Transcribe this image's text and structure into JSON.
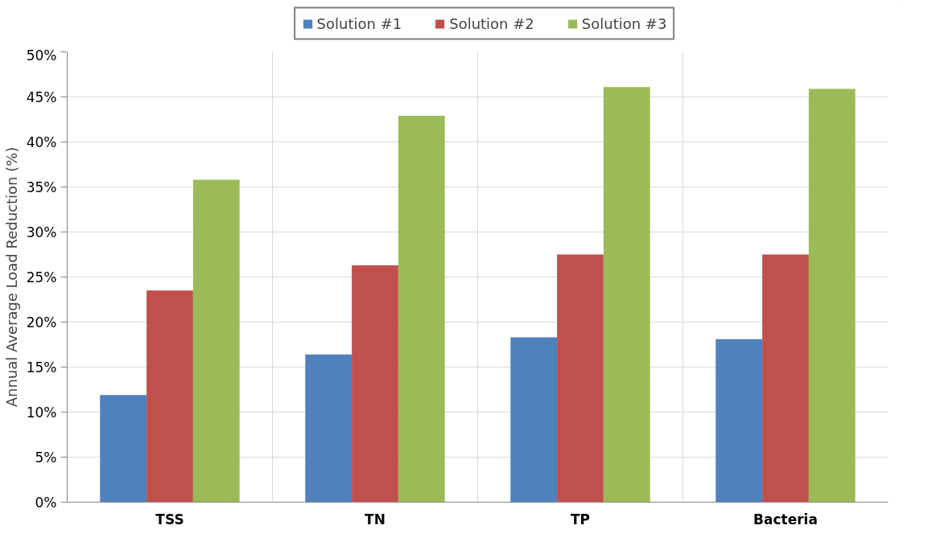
{
  "chart_data": {
    "type": "bar",
    "ylabel": "Annual Average Load Reduction (%)",
    "categories": [
      "TSS",
      "TN",
      "TP",
      "Bacteria"
    ],
    "series": [
      {
        "name": "Solution #1",
        "color": "#4f81bd",
        "values": [
          11.9,
          16.4,
          18.3,
          18.1
        ]
      },
      {
        "name": "Solution #2",
        "color": "#c0504d",
        "values": [
          23.5,
          26.3,
          27.5,
          27.5
        ]
      },
      {
        "name": "Solution #3",
        "color": "#9bbb59",
        "values": [
          35.8,
          42.9,
          46.1,
          45.9
        ]
      }
    ],
    "ylim": [
      0,
      50
    ],
    "yticks": [
      {
        "value": 0,
        "label": "0%"
      },
      {
        "value": 5,
        "label": "5%"
      },
      {
        "value": 10,
        "label": "10%"
      },
      {
        "value": 15,
        "label": "15%"
      },
      {
        "value": 20,
        "label": "20%"
      },
      {
        "value": 25,
        "label": "25%"
      },
      {
        "value": 30,
        "label": "30%"
      },
      {
        "value": 35,
        "label": "35%"
      },
      {
        "value": 40,
        "label": "40%"
      },
      {
        "value": 45,
        "label": "45%"
      },
      {
        "value": 50,
        "label": "50%"
      }
    ],
    "grid": true,
    "legend": "top"
  }
}
